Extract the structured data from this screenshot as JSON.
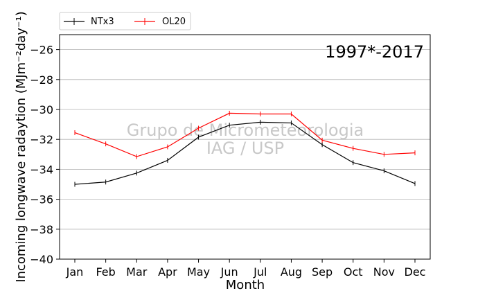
{
  "chart_data": {
    "type": "line",
    "period_label": "1997*-2017",
    "xlabel": "Month",
    "ylabel": "Incoming longwave radaytion (MJm⁻²day⁻¹)",
    "categories": [
      "Jan",
      "Feb",
      "Mar",
      "Apr",
      "May",
      "Jun",
      "Jul",
      "Aug",
      "Sep",
      "Oct",
      "Nov",
      "Dec"
    ],
    "ylim": [
      -40,
      -25
    ],
    "yticks": [
      -40,
      -38,
      -36,
      -34,
      -32,
      -30,
      -28,
      -26
    ],
    "ytick_labels": [
      "−40",
      "−38",
      "−36",
      "−34",
      "−32",
      "−30",
      "−28",
      "−26"
    ],
    "grid": "horizontal",
    "legend_position": "top-left, above plot",
    "watermark": [
      "Grupo de Micrometeorologia",
      "IAG / USP"
    ],
    "series": [
      {
        "name": "NTx3",
        "color": "#000000",
        "values": [
          -35.0,
          -34.85,
          -34.25,
          -33.4,
          -31.85,
          -31.05,
          -30.85,
          -30.9,
          -32.35,
          -33.55,
          -34.1,
          -34.95
        ]
      },
      {
        "name": "OL20",
        "color": "#ff0000",
        "values": [
          -31.55,
          -32.3,
          -33.15,
          -32.5,
          -31.25,
          -30.25,
          -30.3,
          -30.3,
          -32.05,
          -32.6,
          -33.0,
          -32.9
        ]
      }
    ]
  }
}
